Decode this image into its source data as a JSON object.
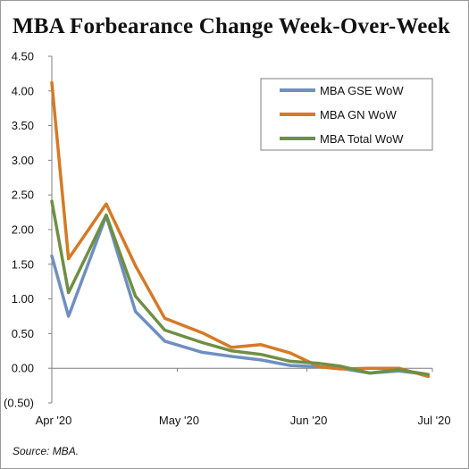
{
  "title": "MBA Forbearance Change Week-Over-Week",
  "source": "Source: MBA.",
  "chart_data": {
    "type": "line",
    "title": "MBA Forbearance Change Week-Over-Week",
    "xlabel": "",
    "ylabel": "",
    "ylim": [
      -0.5,
      4.5
    ],
    "yticks": [
      4.5,
      4.0,
      3.5,
      3.0,
      2.5,
      2.0,
      1.5,
      1.0,
      0.5,
      0.0,
      -0.5
    ],
    "ytick_labels": [
      "4.50",
      "4.00",
      "3.50",
      "3.00",
      "2.50",
      "2.00",
      "1.50",
      "1.00",
      "0.50",
      "0.00",
      "(0.50)"
    ],
    "x": [
      "2020-04-01",
      "2020-04-05",
      "2020-04-14",
      "2020-04-21",
      "2020-04-28",
      "2020-05-07",
      "2020-05-14",
      "2020-05-21",
      "2020-05-28",
      "2020-06-04",
      "2020-06-09",
      "2020-06-16",
      "2020-06-23",
      "2020-06-30"
    ],
    "xticks": [
      "2020-04-01",
      "2020-05-01",
      "2020-06-01",
      "2020-07-01"
    ],
    "xtick_labels": [
      "Apr '20",
      "May '20",
      "Jun '20",
      "Jul '20"
    ],
    "xlim": [
      "2020-04-01",
      "2020-07-01"
    ],
    "grid": false,
    "legend_position": "top-right",
    "series": [
      {
        "name": "MBA GSE WoW",
        "color": "#6f8fc0",
        "values": [
          1.62,
          0.75,
          2.2,
          0.82,
          0.39,
          0.23,
          0.17,
          0.12,
          0.04,
          0.02,
          0.0,
          -0.07,
          -0.04,
          -0.09
        ]
      },
      {
        "name": "MBA GN WoW",
        "color": "#d57a26",
        "values": [
          4.12,
          1.58,
          2.37,
          1.48,
          0.72,
          0.51,
          0.3,
          0.34,
          0.22,
          0.02,
          -0.01,
          0.0,
          0.0,
          -0.12
        ]
      },
      {
        "name": "MBA Total WoW",
        "color": "#6e8f44",
        "values": [
          2.41,
          1.09,
          2.21,
          1.04,
          0.55,
          0.37,
          0.25,
          0.2,
          0.1,
          0.07,
          0.03,
          -0.07,
          -0.02,
          -0.09
        ]
      }
    ]
  }
}
